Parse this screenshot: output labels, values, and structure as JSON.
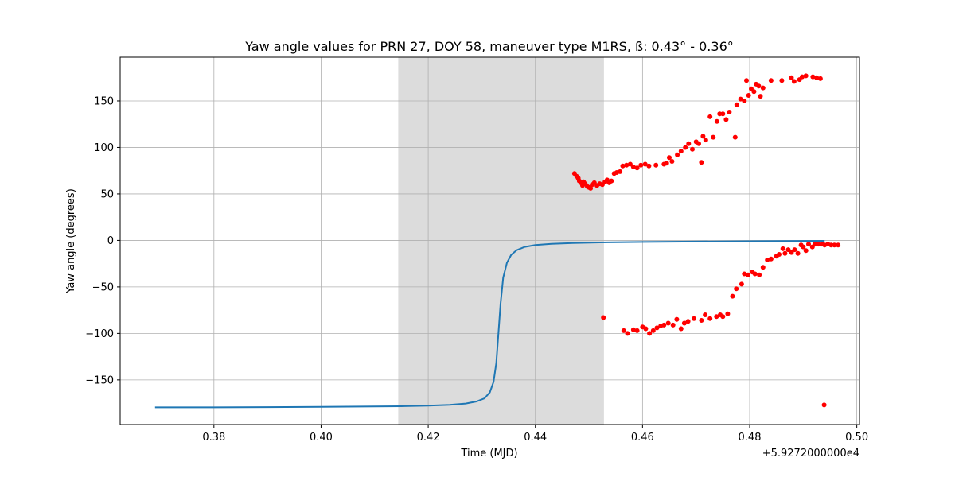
{
  "chart_data": {
    "type": "scatter",
    "title": "Yaw angle values for PRN 27, DOY 58, maneuver type M1RS, ß: 0.43° - 0.36°",
    "xlabel": "Time (MJD)",
    "ylabel": "Yaw angle (degrees)",
    "x_offset_label": "+5.9272000000e4",
    "xlim": [
      0.3625,
      0.5005
    ],
    "ylim": [
      -198,
      197
    ],
    "x_ticks": [
      0.38,
      0.4,
      0.42,
      0.44,
      0.46,
      0.48,
      0.5
    ],
    "x_tick_labels": [
      "0.38",
      "0.40",
      "0.42",
      "0.44",
      "0.46",
      "0.48",
      "0.50"
    ],
    "y_ticks": [
      -150,
      -100,
      -50,
      0,
      50,
      100,
      150
    ],
    "y_tick_labels": [
      "−150",
      "−100",
      "−50",
      "0",
      "50",
      "100",
      "150"
    ],
    "grid": true,
    "shaded_region": {
      "x": [
        0.4144,
        0.4528
      ],
      "color": "#dcdcdc"
    },
    "series": [
      {
        "kind": "line",
        "color": "#1f77b4",
        "points": [
          [
            0.369,
            -179.5
          ],
          [
            0.38,
            -179.5
          ],
          [
            0.39,
            -179.3
          ],
          [
            0.4,
            -179.0
          ],
          [
            0.41,
            -178.6
          ],
          [
            0.415,
            -178.3
          ],
          [
            0.42,
            -177.7
          ],
          [
            0.424,
            -176.8
          ],
          [
            0.427,
            -175.4
          ],
          [
            0.429,
            -173.2
          ],
          [
            0.4305,
            -169.8
          ],
          [
            0.4315,
            -163.5
          ],
          [
            0.4322,
            -152.0
          ],
          [
            0.4327,
            -132.0
          ],
          [
            0.4331,
            -100.0
          ],
          [
            0.4335,
            -68.0
          ],
          [
            0.434,
            -40.0
          ],
          [
            0.4347,
            -24.0
          ],
          [
            0.4355,
            -15.5
          ],
          [
            0.4365,
            -10.5
          ],
          [
            0.438,
            -7.0
          ],
          [
            0.44,
            -5.0
          ],
          [
            0.443,
            -3.7
          ],
          [
            0.447,
            -2.8
          ],
          [
            0.452,
            -2.2
          ],
          [
            0.46,
            -1.7
          ],
          [
            0.47,
            -1.3
          ],
          [
            0.48,
            -0.9
          ],
          [
            0.49,
            -0.6
          ],
          [
            0.494,
            -0.5
          ]
        ]
      },
      {
        "kind": "scatter",
        "color": "#ff0000",
        "points": [
          [
            0.4473,
            72
          ],
          [
            0.4477,
            69
          ],
          [
            0.448,
            67
          ],
          [
            0.4482,
            64
          ],
          [
            0.4485,
            62
          ],
          [
            0.4488,
            59
          ],
          [
            0.449,
            63
          ],
          [
            0.4493,
            61
          ],
          [
            0.4497,
            58
          ],
          [
            0.45,
            57
          ],
          [
            0.4503,
            56
          ],
          [
            0.4506,
            60
          ],
          [
            0.451,
            62
          ],
          [
            0.4515,
            59
          ],
          [
            0.452,
            61
          ],
          [
            0.4525,
            60
          ],
          [
            0.453,
            63
          ],
          [
            0.4534,
            65
          ],
          [
            0.4538,
            62
          ],
          [
            0.4542,
            64
          ],
          [
            0.4547,
            72
          ],
          [
            0.4552,
            73
          ],
          [
            0.4558,
            74
          ],
          [
            0.4563,
            80
          ],
          [
            0.457,
            81
          ],
          [
            0.4577,
            82
          ],
          [
            0.4583,
            79
          ],
          [
            0.459,
            78
          ],
          [
            0.4597,
            81
          ],
          [
            0.4605,
            82
          ],
          [
            0.4612,
            80
          ],
          [
            0.4625,
            81
          ],
          [
            0.464,
            82
          ],
          [
            0.4645,
            83
          ],
          [
            0.465,
            89
          ],
          [
            0.4655,
            85
          ],
          [
            0.4665,
            92
          ],
          [
            0.4672,
            96
          ],
          [
            0.468,
            100
          ],
          [
            0.4686,
            104
          ],
          [
            0.4693,
            98
          ],
          [
            0.47,
            106
          ],
          [
            0.4705,
            104
          ],
          [
            0.471,
            84
          ],
          [
            0.4713,
            112
          ],
          [
            0.4718,
            108
          ],
          [
            0.4726,
            133
          ],
          [
            0.4732,
            111
          ],
          [
            0.4739,
            128
          ],
          [
            0.4744,
            136
          ],
          [
            0.475,
            136
          ],
          [
            0.4756,
            130
          ],
          [
            0.4762,
            138
          ],
          [
            0.4773,
            111
          ],
          [
            0.4776,
            146
          ],
          [
            0.4783,
            152
          ],
          [
            0.479,
            150
          ],
          [
            0.4794,
            172
          ],
          [
            0.4798,
            156
          ],
          [
            0.4803,
            163
          ],
          [
            0.4808,
            160
          ],
          [
            0.4812,
            168
          ],
          [
            0.4817,
            166
          ],
          [
            0.482,
            155
          ],
          [
            0.4825,
            164
          ],
          [
            0.484,
            172
          ],
          [
            0.486,
            172
          ],
          [
            0.4878,
            175
          ],
          [
            0.4883,
            171
          ],
          [
            0.4893,
            173
          ],
          [
            0.4898,
            176
          ],
          [
            0.4905,
            177
          ],
          [
            0.4918,
            176
          ],
          [
            0.4925,
            175
          ],
          [
            0.4932,
            174
          ],
          [
            0.4527,
            -83
          ],
          [
            0.4565,
            -97
          ],
          [
            0.4572,
            -100
          ],
          [
            0.4583,
            -96
          ],
          [
            0.459,
            -97
          ],
          [
            0.46,
            -93
          ],
          [
            0.4606,
            -95
          ],
          [
            0.4613,
            -100
          ],
          [
            0.462,
            -97
          ],
          [
            0.4627,
            -94
          ],
          [
            0.4634,
            -92
          ],
          [
            0.464,
            -91
          ],
          [
            0.4648,
            -89
          ],
          [
            0.4657,
            -91
          ],
          [
            0.4664,
            -85
          ],
          [
            0.4672,
            -95
          ],
          [
            0.4678,
            -89
          ],
          [
            0.4685,
            -87
          ],
          [
            0.4696,
            -84
          ],
          [
            0.471,
            -86
          ],
          [
            0.4717,
            -80
          ],
          [
            0.4726,
            -84
          ],
          [
            0.4738,
            -82
          ],
          [
            0.4745,
            -80
          ],
          [
            0.475,
            -82
          ],
          [
            0.4759,
            -79
          ],
          [
            0.4768,
            -60
          ],
          [
            0.4775,
            -52
          ],
          [
            0.4785,
            -47
          ],
          [
            0.479,
            -36
          ],
          [
            0.4797,
            -37
          ],
          [
            0.4805,
            -34
          ],
          [
            0.481,
            -36
          ],
          [
            0.4818,
            -37
          ],
          [
            0.4825,
            -29
          ],
          [
            0.4833,
            -21
          ],
          [
            0.484,
            -20
          ],
          [
            0.485,
            -17
          ],
          [
            0.4855,
            -15
          ],
          [
            0.4862,
            -9
          ],
          [
            0.4866,
            -14
          ],
          [
            0.4872,
            -10
          ],
          [
            0.4878,
            -13
          ],
          [
            0.4884,
            -10
          ],
          [
            0.489,
            -14
          ],
          [
            0.4896,
            -5
          ],
          [
            0.49,
            -7
          ],
          [
            0.4905,
            -11
          ],
          [
            0.491,
            -4
          ],
          [
            0.4917,
            -7
          ],
          [
            0.4922,
            -4
          ],
          [
            0.4928,
            -4
          ],
          [
            0.4935,
            -4
          ],
          [
            0.494,
            -5
          ],
          [
            0.4946,
            -4
          ],
          [
            0.4952,
            -5
          ],
          [
            0.4958,
            -5
          ],
          [
            0.4965,
            -5
          ],
          [
            0.4939,
            -177
          ]
        ]
      }
    ]
  }
}
